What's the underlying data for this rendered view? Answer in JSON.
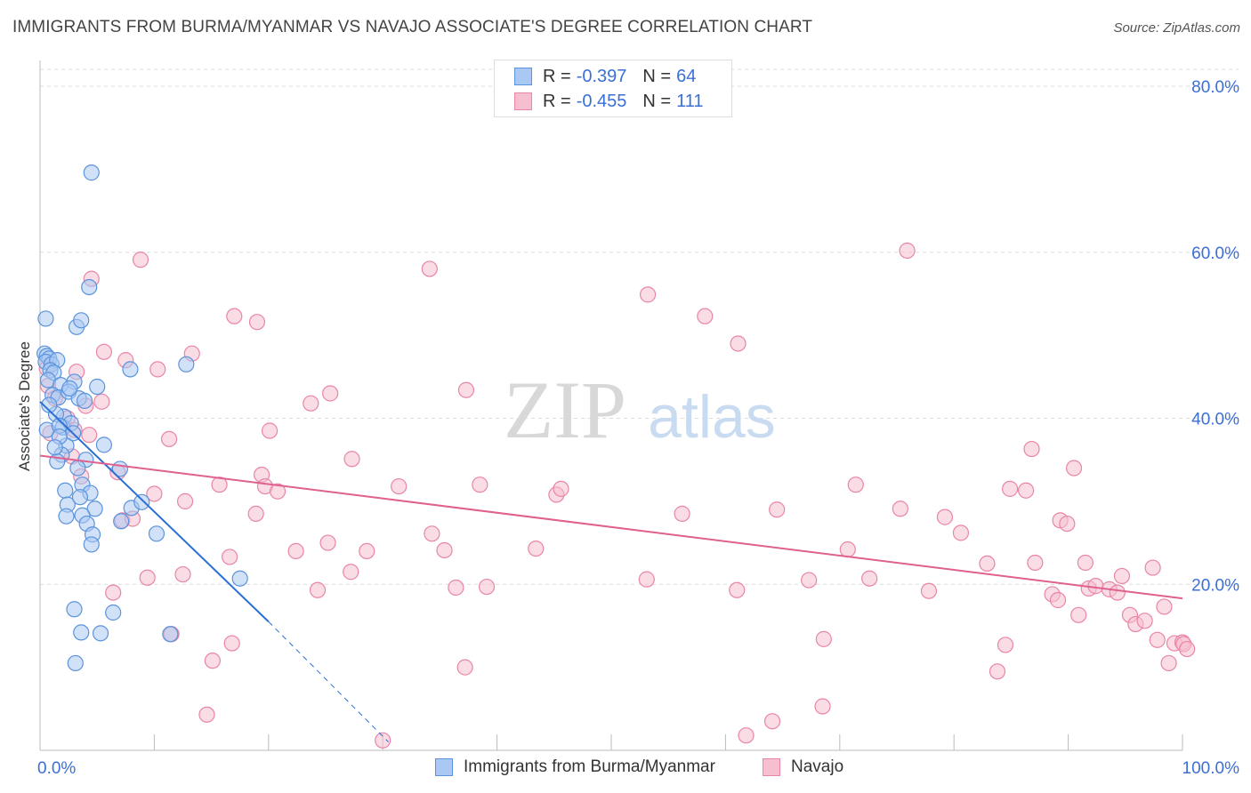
{
  "header": {
    "title": "IMMIGRANTS FROM BURMA/MYANMAR VS NAVAJO ASSOCIATE'S DEGREE CORRELATION CHART",
    "source": "Source: ZipAtlas.com"
  },
  "watermark": {
    "zip": "ZIP",
    "atlas": "atlas"
  },
  "legend": {
    "series1": {
      "r_label": "R =",
      "r_value": "-0.397",
      "n_label": "N =",
      "n_value": "64"
    },
    "series2": {
      "r_label": "R =",
      "r_value": "-0.455",
      "n_label": "N =",
      "n_value": "111"
    }
  },
  "colors": {
    "blue_fill": "#a9c8f3",
    "blue_stroke": "#5b93dc",
    "blue_line": "#2a6fd4",
    "pink_fill": "#f6bfd0",
    "pink_stroke": "#e985a6",
    "pink_line": "#e0608f",
    "axis_text": "#3b6fd6",
    "grid": "#dcdcdc"
  },
  "chart_data": {
    "type": "scatter",
    "title": "IMMIGRANTS FROM BURMA/MYANMAR VS NAVAJO ASSOCIATE'S DEGREE CORRELATION CHART",
    "xlabel": "",
    "ylabel": "Associate's Degree",
    "xlim": [
      0,
      100
    ],
    "ylim": [
      0,
      80
    ],
    "x_tick_labels": [
      "0.0%",
      "100.0%"
    ],
    "y_ticks": [
      20,
      40,
      60,
      80
    ],
    "y_tick_labels": [
      "20.0%",
      "40.0%",
      "60.0%",
      "80.0%"
    ],
    "series": [
      {
        "name": "Immigrants from Burma/Myanmar",
        "color": "blue",
        "R": -0.397,
        "N": 64,
        "trend": {
          "x": [
            0,
            20
          ],
          "y": [
            42.0,
            15.5
          ],
          "dashed_to": [
            30.5,
            1.0
          ]
        },
        "points": [
          [
            0.4,
            47.8
          ],
          [
            0.6,
            47.5
          ],
          [
            0.8,
            47.2
          ],
          [
            0.5,
            46.8
          ],
          [
            1.0,
            46.5
          ],
          [
            1.5,
            47.0
          ],
          [
            0.9,
            45.8
          ],
          [
            1.2,
            45.5
          ],
          [
            0.7,
            44.6
          ],
          [
            1.8,
            44.0
          ],
          [
            3.0,
            44.4
          ],
          [
            1.1,
            42.8
          ],
          [
            1.6,
            42.5
          ],
          [
            2.5,
            43.2
          ],
          [
            3.4,
            42.4
          ],
          [
            3.9,
            42.1
          ],
          [
            2.1,
            40.2
          ],
          [
            1.4,
            40.5
          ],
          [
            0.6,
            38.6
          ],
          [
            2.0,
            38.9
          ],
          [
            2.7,
            39.4
          ],
          [
            2.9,
            38.2
          ],
          [
            1.7,
            39.1
          ],
          [
            2.3,
            36.7
          ],
          [
            1.9,
            35.6
          ],
          [
            4.0,
            35.0
          ],
          [
            1.5,
            34.8
          ],
          [
            3.3,
            34.0
          ],
          [
            3.7,
            32.0
          ],
          [
            2.2,
            31.3
          ],
          [
            4.4,
            31.0
          ],
          [
            2.4,
            29.6
          ],
          [
            4.8,
            29.1
          ],
          [
            2.3,
            28.2
          ],
          [
            3.7,
            28.3
          ],
          [
            4.1,
            27.3
          ],
          [
            4.6,
            26.0
          ],
          [
            7.1,
            27.6
          ],
          [
            8.0,
            29.2
          ],
          [
            8.9,
            29.9
          ],
          [
            10.2,
            26.1
          ],
          [
            7.0,
            33.9
          ],
          [
            4.5,
            24.8
          ],
          [
            5.6,
            36.8
          ],
          [
            3.2,
            51.0
          ],
          [
            3.6,
            51.8
          ],
          [
            0.5,
            52.0
          ],
          [
            4.3,
            55.8
          ],
          [
            4.5,
            69.6
          ],
          [
            7.9,
            45.9
          ],
          [
            12.8,
            46.5
          ],
          [
            17.5,
            20.7
          ],
          [
            3.0,
            17.0
          ],
          [
            6.4,
            16.6
          ],
          [
            3.6,
            14.2
          ],
          [
            5.3,
            14.1
          ],
          [
            11.4,
            14.0
          ],
          [
            3.1,
            10.5
          ],
          [
            1.7,
            37.8
          ],
          [
            2.6,
            43.6
          ],
          [
            0.8,
            41.6
          ],
          [
            1.3,
            36.5
          ],
          [
            3.5,
            30.5
          ],
          [
            5.0,
            43.8
          ]
        ]
      },
      {
        "name": "Navajo",
        "color": "pink",
        "R": -0.455,
        "N": 111,
        "trend": {
          "x": [
            0,
            100
          ],
          "y": [
            35.5,
            18.3
          ]
        },
        "points": [
          [
            0.6,
            46.0
          ],
          [
            3.2,
            45.6
          ],
          [
            4.5,
            56.8
          ],
          [
            8.8,
            59.1
          ],
          [
            5.6,
            48.0
          ],
          [
            7.5,
            47.0
          ],
          [
            10.3,
            45.9
          ],
          [
            13.3,
            47.8
          ],
          [
            0.7,
            43.9
          ],
          [
            5.4,
            42.0
          ],
          [
            1.3,
            42.4
          ],
          [
            4.0,
            41.5
          ],
          [
            2.4,
            40.0
          ],
          [
            3.0,
            38.6
          ],
          [
            0.9,
            38.2
          ],
          [
            4.3,
            38.0
          ],
          [
            11.3,
            37.5
          ],
          [
            3.6,
            33.0
          ],
          [
            2.8,
            35.4
          ],
          [
            6.8,
            33.5
          ],
          [
            10.0,
            30.9
          ],
          [
            12.7,
            30.0
          ],
          [
            15.7,
            32.0
          ],
          [
            19.4,
            33.2
          ],
          [
            19.7,
            31.8
          ],
          [
            20.8,
            31.2
          ],
          [
            16.6,
            23.3
          ],
          [
            18.9,
            28.5
          ],
          [
            7.2,
            27.7
          ],
          [
            8.1,
            27.9
          ],
          [
            9.4,
            20.8
          ],
          [
            12.5,
            21.2
          ],
          [
            6.4,
            19.0
          ],
          [
            17.0,
            52.3
          ],
          [
            19.0,
            51.6
          ],
          [
            20.1,
            38.5
          ],
          [
            23.7,
            41.8
          ],
          [
            25.4,
            43.0
          ],
          [
            27.3,
            35.1
          ],
          [
            22.4,
            24.0
          ],
          [
            25.2,
            25.0
          ],
          [
            24.3,
            19.3
          ],
          [
            27.2,
            21.5
          ],
          [
            28.6,
            24.0
          ],
          [
            31.4,
            31.8
          ],
          [
            34.1,
            58.0
          ],
          [
            34.3,
            26.1
          ],
          [
            35.4,
            24.1
          ],
          [
            36.4,
            19.6
          ],
          [
            37.3,
            43.4
          ],
          [
            38.5,
            32.0
          ],
          [
            39.1,
            19.7
          ],
          [
            37.2,
            10.0
          ],
          [
            45.2,
            30.8
          ],
          [
            45.6,
            31.5
          ],
          [
            43.4,
            24.3
          ],
          [
            53.2,
            54.9
          ],
          [
            53.1,
            20.6
          ],
          [
            56.2,
            28.5
          ],
          [
            58.2,
            52.3
          ],
          [
            61.1,
            49.0
          ],
          [
            61.0,
            19.3
          ],
          [
            64.5,
            29.0
          ],
          [
            67.3,
            20.5
          ],
          [
            68.6,
            13.4
          ],
          [
            70.7,
            24.2
          ],
          [
            71.4,
            32.0
          ],
          [
            72.6,
            20.7
          ],
          [
            75.3,
            29.1
          ],
          [
            75.9,
            60.2
          ],
          [
            77.8,
            19.2
          ],
          [
            79.2,
            28.1
          ],
          [
            80.6,
            26.2
          ],
          [
            82.9,
            22.5
          ],
          [
            83.8,
            9.5
          ],
          [
            84.5,
            12.7
          ],
          [
            84.9,
            31.5
          ],
          [
            86.3,
            31.3
          ],
          [
            87.1,
            22.6
          ],
          [
            86.8,
            36.3
          ],
          [
            88.6,
            18.8
          ],
          [
            89.1,
            18.1
          ],
          [
            89.3,
            27.7
          ],
          [
            89.9,
            27.3
          ],
          [
            90.5,
            34.0
          ],
          [
            90.9,
            16.3
          ],
          [
            91.5,
            22.6
          ],
          [
            91.8,
            19.5
          ],
          [
            92.4,
            19.8
          ],
          [
            93.6,
            19.4
          ],
          [
            94.3,
            19.0
          ],
          [
            94.7,
            21.0
          ],
          [
            95.4,
            16.3
          ],
          [
            95.9,
            15.2
          ],
          [
            96.7,
            15.6
          ],
          [
            97.4,
            22.0
          ],
          [
            97.8,
            13.3
          ],
          [
            98.4,
            17.3
          ],
          [
            98.8,
            10.5
          ],
          [
            99.3,
            12.9
          ],
          [
            100.0,
            13.0
          ],
          [
            100.1,
            12.8
          ],
          [
            100.4,
            12.2
          ],
          [
            61.8,
            1.8
          ],
          [
            64.1,
            3.5
          ],
          [
            68.5,
            5.3
          ],
          [
            30.0,
            1.2
          ],
          [
            14.6,
            4.3
          ],
          [
            11.5,
            14.0
          ],
          [
            16.8,
            12.9
          ],
          [
            15.1,
            10.8
          ]
        ]
      }
    ]
  },
  "bottom_legend": {
    "series1_label": "Immigrants from Burma/Myanmar",
    "series2_label": "Navajo"
  }
}
